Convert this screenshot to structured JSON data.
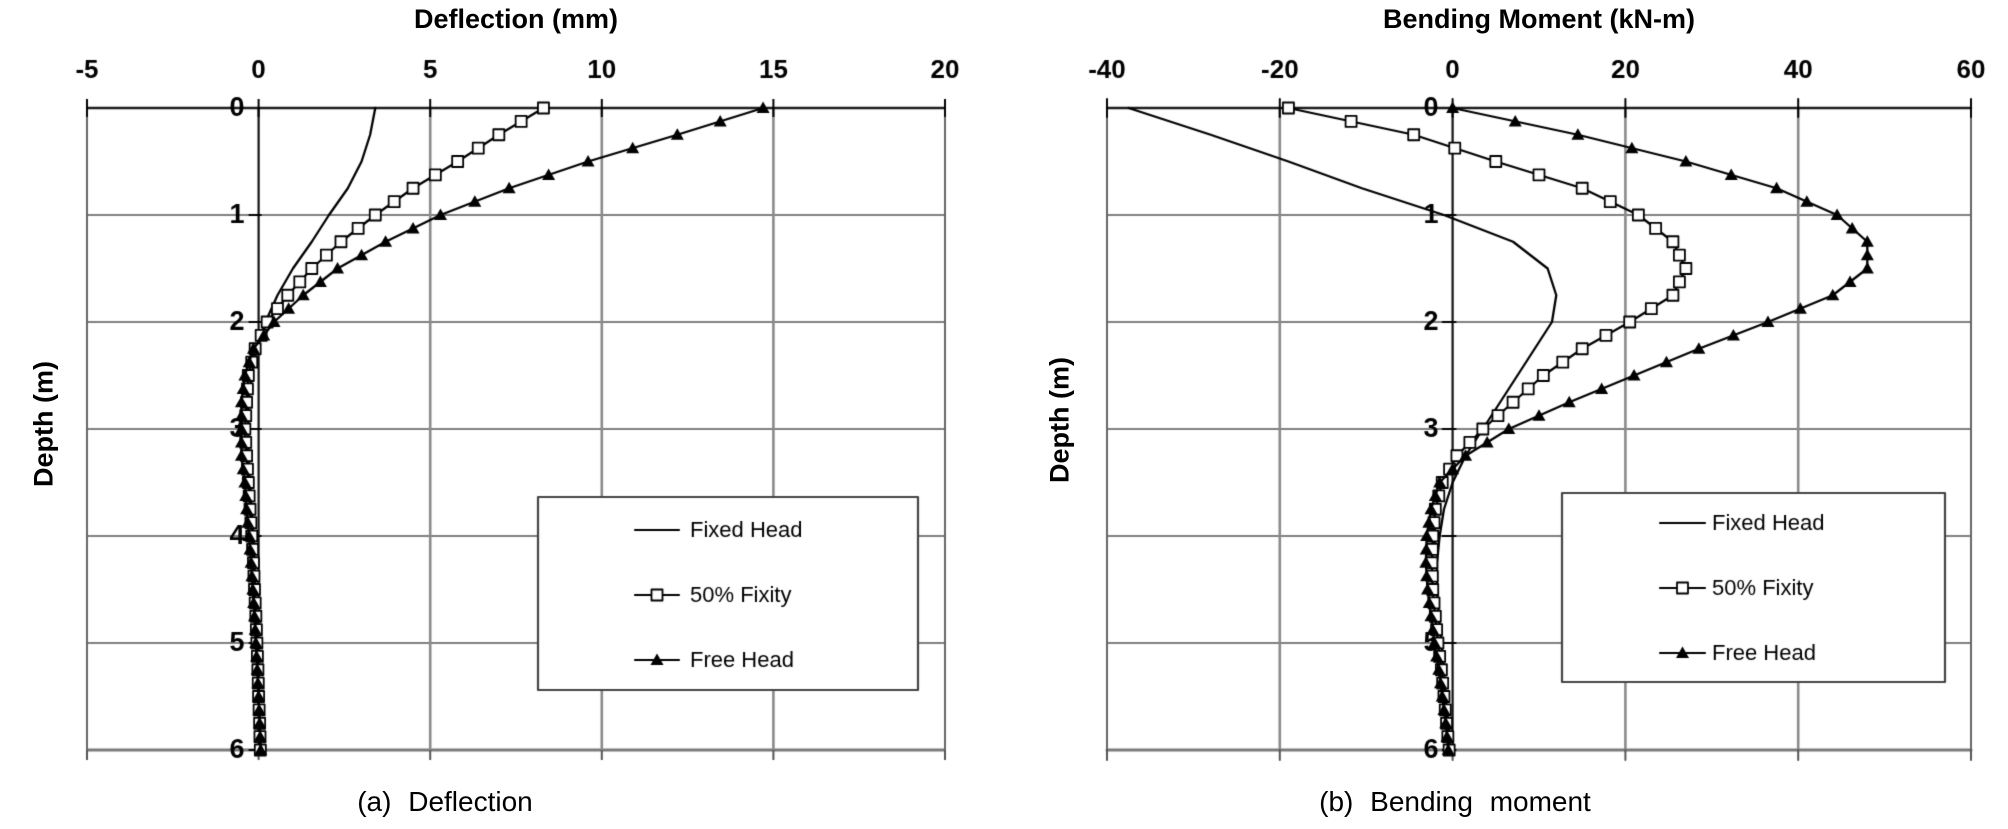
{
  "page": {
    "background": "#ffffff",
    "ink": "#000000",
    "grid_color": "#8a8a8a"
  },
  "chart_data": [
    {
      "type": "line",
      "title": "Deflection (mm)",
      "ylabel": "Depth (m)",
      "caption": "(a) Deflection",
      "xlim": [
        -5,
        20
      ],
      "xticks": [
        -5,
        0,
        5,
        10,
        15,
        20
      ],
      "ylim": [
        0,
        6
      ],
      "yticks": [
        0,
        1,
        2,
        3,
        4,
        5,
        6
      ],
      "y_direction": "down",
      "grid": true,
      "legend_position": "inside-lower-right",
      "legend": [
        "Fixed Head",
        "50% Fixity",
        "Free Head"
      ],
      "depths": [
        0,
        0.25,
        0.5,
        0.75,
        1,
        1.25,
        1.5,
        1.75,
        2,
        2.25,
        2.5,
        2.75,
        3,
        3.25,
        3.5,
        3.75,
        4,
        4.25,
        4.5,
        4.75,
        5,
        5.25,
        5.5,
        5.75,
        6
      ],
      "series": [
        {
          "name": "Fixed Head",
          "marker": "none",
          "values": [
            3.4,
            3.25,
            3.0,
            2.6,
            2.05,
            1.55,
            1.0,
            0.55,
            0.2,
            -0.05,
            -0.2,
            -0.3,
            -0.3,
            -0.3,
            -0.25,
            -0.2,
            -0.15,
            -0.12,
            -0.1,
            -0.08,
            -0.05,
            -0.02,
            0,
            0.02,
            0.05
          ]
        },
        {
          "name": "50% Fixity",
          "marker": "open-square",
          "values": [
            8.3,
            7.0,
            5.8,
            4.5,
            3.4,
            2.4,
            1.55,
            0.85,
            0.25,
            -0.1,
            -0.3,
            -0.35,
            -0.4,
            -0.35,
            -0.3,
            -0.25,
            -0.2,
            -0.15,
            -0.12,
            -0.08,
            -0.05,
            -0.02,
            0,
            0.03,
            0.05
          ]
        },
        {
          "name": "Free Head",
          "marker": "filled-triangle",
          "values": [
            14.7,
            12.2,
            9.6,
            7.3,
            5.3,
            3.7,
            2.3,
            1.3,
            0.45,
            -0.15,
            -0.4,
            -0.5,
            -0.5,
            -0.5,
            -0.4,
            -0.35,
            -0.28,
            -0.22,
            -0.17,
            -0.12,
            -0.08,
            -0.04,
            0,
            0.03,
            0.06
          ]
        }
      ]
    },
    {
      "type": "line",
      "title": "Bending Moment (kN-m)",
      "ylabel": "Depth (m)",
      "caption": "(b) Bending moment",
      "xlim": [
        -40,
        60
      ],
      "xticks": [
        -40,
        -20,
        0,
        20,
        40,
        60
      ],
      "ylim": [
        0,
        6
      ],
      "yticks": [
        0,
        1,
        2,
        3,
        4,
        5,
        6
      ],
      "y_direction": "down",
      "grid": true,
      "legend_position": "inside-lower-right",
      "legend": [
        "Fixed Head",
        "50% Fixity",
        "Free Head"
      ],
      "depths": [
        0,
        0.25,
        0.5,
        0.75,
        1,
        1.25,
        1.5,
        1.75,
        2,
        2.25,
        2.5,
        2.75,
        3,
        3.25,
        3.5,
        3.75,
        4,
        4.25,
        4.5,
        4.75,
        5,
        5.25,
        5.5,
        5.75,
        6
      ],
      "series": [
        {
          "name": "Fixed Head",
          "marker": "none",
          "values": [
            -37.5,
            -28,
            -19,
            -10.5,
            -1,
            7,
            11,
            12,
            11.5,
            9.5,
            7.5,
            5.5,
            3.5,
            1.5,
            0,
            -1,
            -1.5,
            -1.8,
            -1.8,
            -1.6,
            -1.3,
            -1.0,
            -0.8,
            -0.5,
            -0.3
          ]
        },
        {
          "name": "50% Fixity",
          "marker": "open-square",
          "values": [
            -19,
            -4.5,
            5,
            15,
            21.5,
            25.5,
            27,
            25.5,
            20.5,
            15,
            10.5,
            7,
            3.5,
            0.5,
            -1.2,
            -2,
            -2.3,
            -2.4,
            -2.3,
            -2.0,
            -1.7,
            -1.3,
            -1.0,
            -0.7,
            -0.4
          ]
        },
        {
          "name": "Free Head",
          "marker": "filled-triangle",
          "values": [
            0,
            14.5,
            27,
            37.5,
            44.5,
            48,
            48,
            44,
            36.5,
            28.5,
            21,
            13.5,
            6.5,
            1.5,
            -1.5,
            -2.5,
            -3,
            -3.1,
            -2.9,
            -2.5,
            -2.1,
            -1.6,
            -1.2,
            -0.8,
            -0.5
          ]
        }
      ]
    }
  ]
}
